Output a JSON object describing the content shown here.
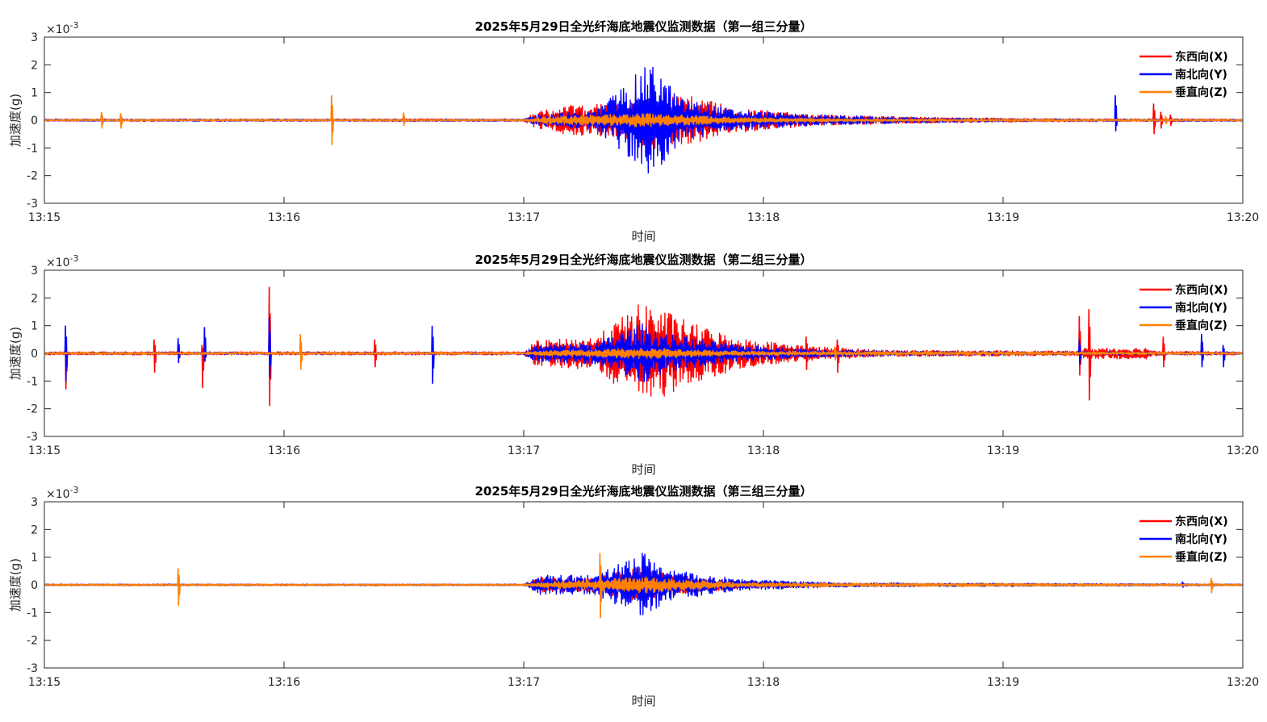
{
  "chart_data": [
    {
      "type": "line",
      "title": "2025年5月29日全光纤海底地震仪监测数据（第一组三分量）",
      "xlabel": "时间",
      "ylabel": "加速度(g)",
      "yexponent": "×10",
      "yexponent_power": "-3",
      "x_ticks": [
        "13:15",
        "13:16",
        "13:17",
        "13:18",
        "13:19",
        "13:20"
      ],
      "xlim_minutes": [
        0,
        5
      ],
      "y_ticks": [
        "3",
        "2",
        "1",
        "0",
        "-1",
        "-2",
        "-3"
      ],
      "ylim": [
        -3,
        3
      ],
      "legend_position": "top-right",
      "series": [
        {
          "name": "东西向(X)",
          "color": "#ff0000",
          "envelope": [
            [
              0,
              0.04
            ],
            [
              1.2,
              0.04
            ],
            [
              1.5,
              0.05
            ],
            [
              2.0,
              0.04
            ],
            [
              2.05,
              0.3
            ],
            [
              2.2,
              0.55
            ],
            [
              2.4,
              0.6
            ],
            [
              2.55,
              1.1
            ],
            [
              2.7,
              0.85
            ],
            [
              2.9,
              0.45
            ],
            [
              3.2,
              0.2
            ],
            [
              3.6,
              0.12
            ],
            [
              4.1,
              0.06
            ],
            [
              4.6,
              0.05
            ],
            [
              4.8,
              0.05
            ],
            [
              5.0,
              0.04
            ]
          ],
          "spikes": [
            [
              4.63,
              0.6,
              -0.5
            ],
            [
              4.66,
              0.3,
              -0.3
            ],
            [
              4.7,
              0.2,
              -0.2
            ]
          ]
        },
        {
          "name": "南北向(Y)",
          "color": "#0000ff",
          "envelope": [
            [
              0,
              0.04
            ],
            [
              2.0,
              0.04
            ],
            [
              2.05,
              0.2
            ],
            [
              2.3,
              0.35
            ],
            [
              2.5,
              1.9
            ],
            [
              2.55,
              2.0
            ],
            [
              2.65,
              0.8
            ],
            [
              2.9,
              0.35
            ],
            [
              3.2,
              0.2
            ],
            [
              3.6,
              0.1
            ],
            [
              4.1,
              0.05
            ],
            [
              5.0,
              0.04
            ]
          ],
          "spikes": [
            [
              4.47,
              0.9,
              -0.4
            ]
          ]
        },
        {
          "name": "垂直向(Z)",
          "color": "#ff8000",
          "envelope": [
            [
              0,
              0.03
            ],
            [
              2.0,
              0.03
            ],
            [
              2.1,
              0.15
            ],
            [
              2.5,
              0.25
            ],
            [
              2.9,
              0.1
            ],
            [
              3.5,
              0.05
            ],
            [
              5.0,
              0.03
            ]
          ],
          "spikes": [
            [
              0.24,
              0.3,
              -0.3
            ],
            [
              0.32,
              0.25,
              -0.3
            ],
            [
              1.2,
              0.9,
              -0.9
            ],
            [
              1.5,
              0.28,
              -0.2
            ],
            [
              4.68,
              0.15,
              -0.15
            ]
          ]
        }
      ]
    },
    {
      "type": "line",
      "title": "2025年5月29日全光纤海底地震仪监测数据（第二组三分量）",
      "xlabel": "时间",
      "ylabel": "加速度(g)",
      "yexponent": "×10",
      "yexponent_power": "-3",
      "x_ticks": [
        "13:15",
        "13:16",
        "13:17",
        "13:18",
        "13:19",
        "13:20"
      ],
      "xlim_minutes": [
        0,
        5
      ],
      "y_ticks": [
        "3",
        "2",
        "1",
        "0",
        "-1",
        "-2",
        "-3"
      ],
      "ylim": [
        -3,
        3
      ],
      "legend_position": "top-right",
      "series": [
        {
          "name": "东西向(X)",
          "color": "#ff0000",
          "envelope": [
            [
              0,
              0.06
            ],
            [
              2.0,
              0.06
            ],
            [
              2.05,
              0.45
            ],
            [
              2.3,
              0.6
            ],
            [
              2.5,
              1.9
            ],
            [
              2.55,
              1.7
            ],
            [
              2.7,
              1.1
            ],
            [
              2.9,
              0.55
            ],
            [
              3.2,
              0.25
            ],
            [
              3.5,
              0.12
            ],
            [
              4.3,
              0.08
            ],
            [
              4.35,
              0.2
            ],
            [
              4.6,
              0.2
            ],
            [
              4.65,
              0.08
            ],
            [
              5.0,
              0.06
            ]
          ],
          "spikes": [
            [
              0.09,
              0.2,
              -1.3
            ],
            [
              0.46,
              0.5,
              -0.7
            ],
            [
              0.66,
              0.3,
              -1.25
            ],
            [
              0.94,
              2.4,
              -1.9
            ],
            [
              1.38,
              0.5,
              -0.5
            ],
            [
              3.18,
              0.6,
              -0.6
            ],
            [
              3.31,
              0.5,
              -0.7
            ],
            [
              4.32,
              1.35,
              -0.8
            ],
            [
              4.36,
              1.6,
              -1.7
            ],
            [
              4.67,
              0.6,
              -0.5
            ],
            [
              4.83,
              0.5,
              -0.4
            ]
          ]
        },
        {
          "name": "南北向(Y)",
          "color": "#0000ff",
          "envelope": [
            [
              0,
              0.04
            ],
            [
              2.0,
              0.04
            ],
            [
              2.05,
              0.3
            ],
            [
              2.3,
              0.4
            ],
            [
              2.5,
              1.1
            ],
            [
              2.6,
              0.7
            ],
            [
              2.9,
              0.3
            ],
            [
              3.2,
              0.15
            ],
            [
              3.6,
              0.08
            ],
            [
              5.0,
              0.04
            ]
          ],
          "spikes": [
            [
              0.09,
              1.0,
              -1.0
            ],
            [
              0.56,
              0.55,
              -0.35
            ],
            [
              0.67,
              0.95,
              -0.3
            ],
            [
              0.94,
              1.3,
              -0.9
            ],
            [
              1.62,
              1.0,
              -1.1
            ],
            [
              4.32,
              0.5,
              -0.4
            ],
            [
              4.83,
              0.7,
              -0.5
            ],
            [
              4.92,
              0.3,
              -0.5
            ]
          ]
        },
        {
          "name": "垂直向(Z)",
          "color": "#ff8000",
          "envelope": [
            [
              0,
              0.04
            ],
            [
              2.0,
              0.04
            ],
            [
              2.1,
              0.1
            ],
            [
              2.5,
              0.2
            ],
            [
              2.9,
              0.08
            ],
            [
              5.0,
              0.04
            ]
          ],
          "spikes": [
            [
              1.07,
              0.7,
              -0.6
            ],
            [
              3.3,
              0.25,
              -0.25
            ]
          ]
        }
      ]
    },
    {
      "type": "line",
      "title": "2025年5月29日全光纤海底地震仪监测数据（第三组三分量）",
      "xlabel": "时间",
      "ylabel": "加速度(g)",
      "yexponent": "×10",
      "yexponent_power": "-3",
      "x_ticks": [
        "13:15",
        "13:16",
        "13:17",
        "13:18",
        "13:19",
        "13:20"
      ],
      "xlim_minutes": [
        0,
        5
      ],
      "y_ticks": [
        "3",
        "2",
        "1",
        "0",
        "-1",
        "-2",
        "-3"
      ],
      "ylim": [
        -3,
        3
      ],
      "legend_position": "top-right",
      "series": [
        {
          "name": "东西向(X)",
          "color": "#ff0000",
          "envelope": [
            [
              0,
              0.03
            ],
            [
              2.0,
              0.03
            ],
            [
              2.07,
              0.3
            ],
            [
              2.3,
              0.25
            ],
            [
              2.5,
              0.7
            ],
            [
              2.6,
              0.4
            ],
            [
              2.9,
              0.15
            ],
            [
              3.3,
              0.06
            ],
            [
              5.0,
              0.03
            ]
          ],
          "spikes": []
        },
        {
          "name": "南北向(Y)",
          "color": "#0000ff",
          "envelope": [
            [
              0,
              0.03
            ],
            [
              2.0,
              0.03
            ],
            [
              2.07,
              0.35
            ],
            [
              2.3,
              0.35
            ],
            [
              2.5,
              1.2
            ],
            [
              2.6,
              0.6
            ],
            [
              2.9,
              0.2
            ],
            [
              3.3,
              0.08
            ],
            [
              5.0,
              0.03
            ]
          ],
          "spikes": [
            [
              4.75,
              0.12,
              -0.1
            ]
          ]
        },
        {
          "name": "垂直向(Z)",
          "color": "#ff8000",
          "envelope": [
            [
              0,
              0.03
            ],
            [
              2.0,
              0.03
            ],
            [
              2.1,
              0.12
            ],
            [
              2.5,
              0.3
            ],
            [
              2.9,
              0.08
            ],
            [
              5.0,
              0.03
            ]
          ],
          "spikes": [
            [
              0.56,
              0.6,
              -0.75
            ],
            [
              2.32,
              1.15,
              -1.2
            ],
            [
              4.87,
              0.25,
              -0.3
            ]
          ]
        }
      ]
    }
  ]
}
